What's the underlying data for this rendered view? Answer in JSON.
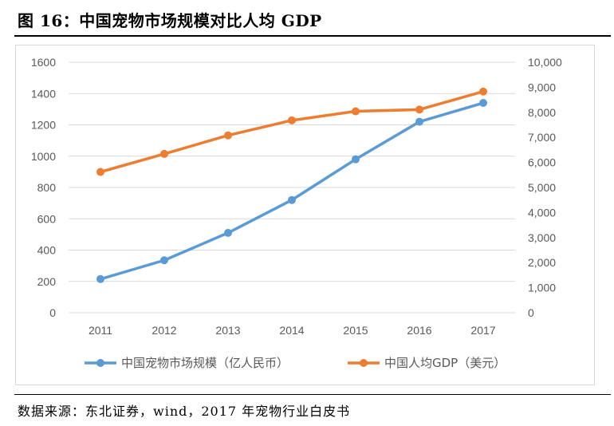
{
  "figure": {
    "title": "图 16：中国宠物市场规模对比人均 GDP",
    "source": "数据来源：东北证券，wind，2017 年宠物行业白皮书"
  },
  "colors": {
    "market": "#5B9BD5",
    "gdp": "#ED7D31",
    "grid": "#d9d9d9",
    "text": "#595959"
  },
  "chart_data": {
    "type": "line",
    "title": "图 16：中国宠物市场规模对比人均 GDP",
    "categories": [
      "2011",
      "2012",
      "2013",
      "2014",
      "2015",
      "2016",
      "2017"
    ],
    "series": [
      {
        "name": "中国宠物市场规模（亿人民币）",
        "axis": "left",
        "values": [
          215,
          335,
          510,
          720,
          980,
          1220,
          1340
        ]
      },
      {
        "name": "中国人均GDP（美元）",
        "axis": "right",
        "values": [
          5620,
          6340,
          7080,
          7680,
          8040,
          8110,
          8830
        ]
      }
    ],
    "left_axis": {
      "min": 0,
      "max": 1600,
      "ticks": [
        "0",
        "200",
        "400",
        "600",
        "800",
        "1000",
        "1200",
        "1400",
        "1600"
      ]
    },
    "right_axis": {
      "min": 0,
      "max": 10000,
      "ticks": [
        "0",
        "1,000",
        "2,000",
        "3,000",
        "4,000",
        "5,000",
        "6,000",
        "7,000",
        "8,000",
        "9,000",
        "10,000"
      ]
    },
    "grid": true,
    "legend_position": "bottom"
  }
}
